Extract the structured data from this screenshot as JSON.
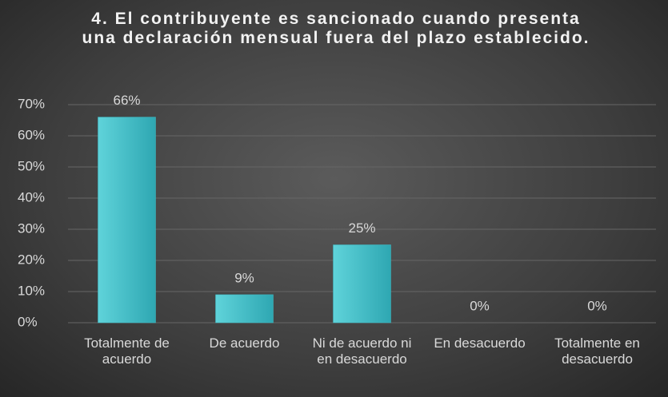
{
  "chart_data": {
    "type": "bar",
    "title": "4.  El contribuyente es sancionado cuando presenta una declaración mensual fuera del plazo establecido.",
    "categories": [
      "Totalmente de acuerdo",
      "De acuerdo",
      "Ni de acuerdo ni en desacuerdo",
      "En desacuerdo",
      "Totalmente en desacuerdo"
    ],
    "values": [
      66,
      9,
      25,
      0,
      0
    ],
    "value_labels": [
      "66%",
      "9%",
      "25%",
      "0%",
      "0%"
    ],
    "color": "#3fbcc6",
    "ylim": [
      0,
      70
    ],
    "yticks": [
      {
        "value": 0,
        "label": "0%"
      },
      {
        "value": 10,
        "label": "10%"
      },
      {
        "value": 20,
        "label": "20%"
      },
      {
        "value": 30,
        "label": "30%"
      },
      {
        "value": 40,
        "label": "40%"
      },
      {
        "value": 50,
        "label": "50%"
      },
      {
        "value": 60,
        "label": "60%"
      },
      {
        "value": 70,
        "label": "70%"
      }
    ],
    "grid": true
  }
}
